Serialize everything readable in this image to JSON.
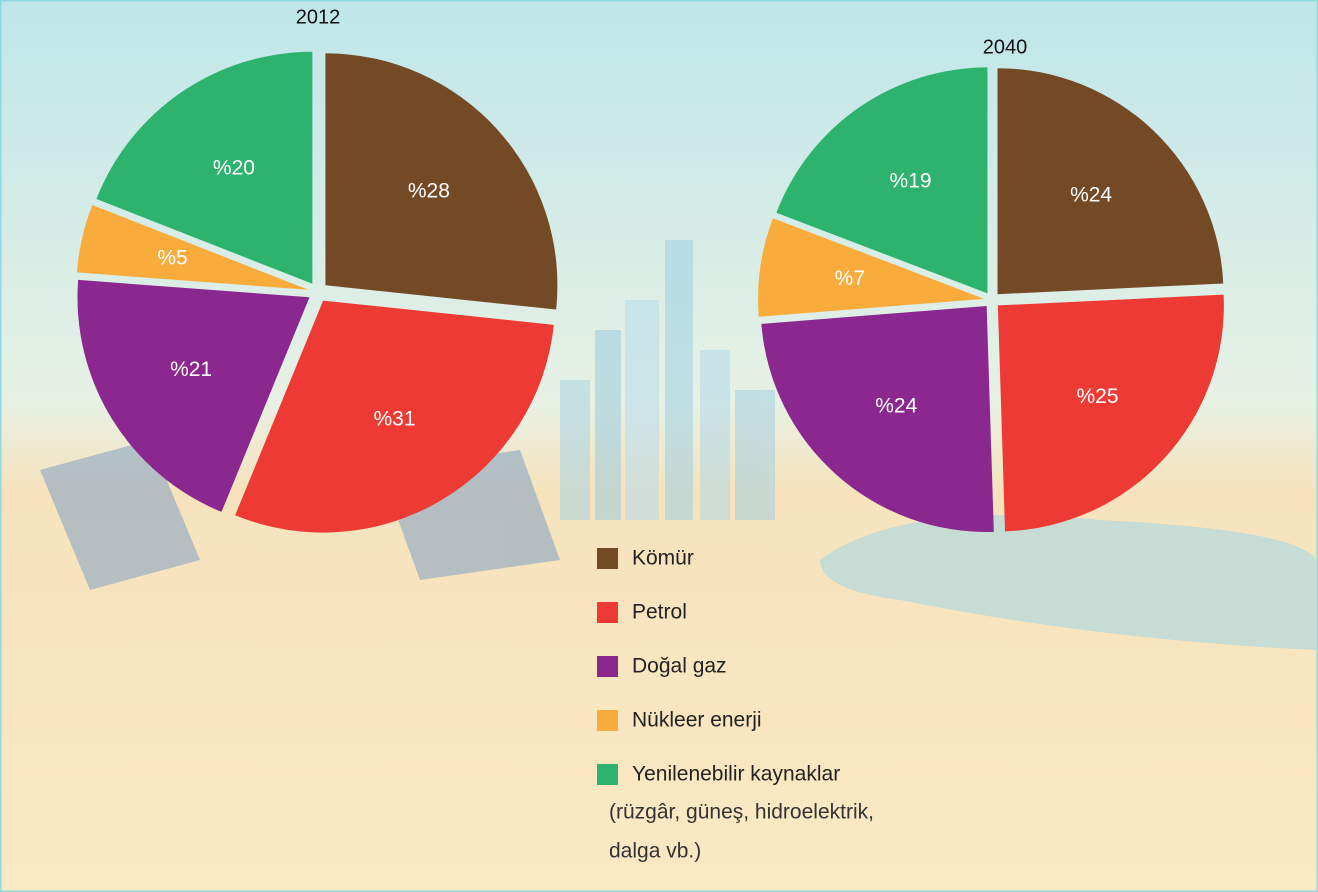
{
  "chart_data": [
    {
      "type": "pie",
      "title": "2012",
      "categories": [
        "Kömür",
        "Petrol",
        "Doğal gaz",
        "Nükleer enerji",
        "Yenilenebilir kaynaklar"
      ],
      "values": [
        28,
        31,
        21,
        5,
        20
      ],
      "value_labels": [
        "%28",
        "%31",
        "%21",
        "%5",
        "%20"
      ],
      "colors": [
        "#744a26",
        "#ee3a34",
        "#8b2890",
        "#f9ac3c",
        "#2db36e"
      ]
    },
    {
      "type": "pie",
      "title": "2040",
      "categories": [
        "Kömür",
        "Petrol",
        "Doğal gaz",
        "Nükleer enerji",
        "Yenilenebilir kaynaklar"
      ],
      "values": [
        24,
        25,
        24,
        7,
        19
      ],
      "value_labels": [
        "%24",
        "%25",
        "%24",
        "%7",
        "%19"
      ],
      "colors": [
        "#744a26",
        "#ee3a34",
        "#8b2890",
        "#f9ac3c",
        "#2db36e"
      ]
    }
  ],
  "legend_note": [
    "(rüzgâr, güneş, hidroelektrik,",
    "dalga vb.)"
  ]
}
